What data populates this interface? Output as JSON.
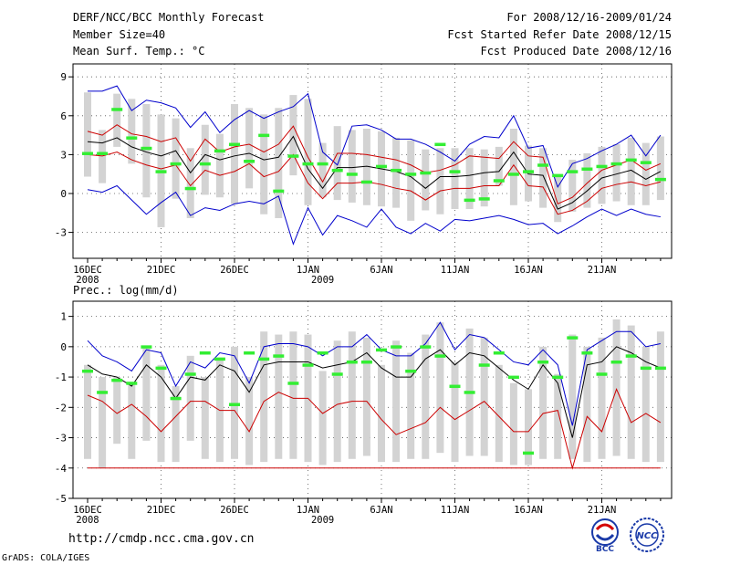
{
  "header": {
    "title": "DERF/NCC/BCC Monthly Forecast",
    "member_size": "Member Size=40",
    "variable_1": "Mean Surf. Temp.: °C",
    "period": "For 2008/12/16-2009/01/24",
    "started": "Fcst Started Refer Date 2008/12/15",
    "produced": "Fcst Produced Date 2008/12/16"
  },
  "footer": {
    "url": "http://cmdp.ncc.cma.gov.cn",
    "credit": "GrADS: COLA/IGES",
    "logo_bcc": "BCC",
    "logo_ncc": "NCC"
  },
  "colors": {
    "max_line": "#0000cc",
    "min_line": "#cc0000",
    "mean_line": "#000000",
    "box": "#d3d3d3",
    "median": "#33ee33"
  },
  "chart_data": [
    {
      "type": "box-spread",
      "title": "Mean Surf. Temp.: °C",
      "ylim": [
        -5,
        10
      ],
      "yticks": [
        9,
        6,
        3,
        0,
        -3
      ],
      "x_tick_labels": [
        "16DEC",
        "21DEC",
        "26DEC",
        "1JAN",
        "6JAN",
        "11JAN",
        "16JAN",
        "21JAN"
      ],
      "x_year_labels": [
        {
          "day": 0,
          "label": "2008"
        },
        {
          "day": 16,
          "label": "2009"
        }
      ],
      "days": 40,
      "series": [
        {
          "name": "max",
          "values": [
            7.9,
            7.9,
            8.3,
            6.4,
            7.2,
            7.0,
            6.6,
            5.1,
            6.3,
            4.7,
            5.7,
            6.4,
            5.8,
            6.3,
            6.7,
            7.7,
            3.2,
            2.2,
            5.2,
            5.3,
            4.9,
            4.2,
            4.2,
            3.8,
            3.2,
            2.5,
            3.8,
            4.4,
            4.3,
            6.0,
            3.5,
            3.7,
            0.5,
            2.3,
            2.7,
            3.3,
            3.8,
            4.5,
            2.9,
            4.5
          ]
        },
        {
          "name": "upper",
          "values": [
            4.8,
            4.5,
            5.3,
            4.6,
            4.4,
            4.0,
            4.3,
            2.5,
            4.2,
            3.2,
            3.6,
            3.8,
            3.2,
            3.8,
            5.2,
            2.8,
            0.9,
            3.1,
            3.1,
            3.0,
            2.8,
            2.6,
            2.2,
            1.6,
            1.8,
            2.2,
            2.9,
            2.8,
            2.7,
            4.0,
            2.9,
            2.8,
            -0.8,
            -0.3,
            0.8,
            1.8,
            2.2,
            2.6,
            1.8,
            2.3
          ]
        },
        {
          "name": "mean",
          "values": [
            4.0,
            3.9,
            4.3,
            3.6,
            3.2,
            2.9,
            3.3,
            1.6,
            3.0,
            2.6,
            2.9,
            3.1,
            2.6,
            2.8,
            4.4,
            1.9,
            0.4,
            2.0,
            2.0,
            2.1,
            1.9,
            1.7,
            1.3,
            0.4,
            1.3,
            1.3,
            1.4,
            1.6,
            1.7,
            3.2,
            1.5,
            1.4,
            -1.2,
            -0.7,
            0.2,
            1.2,
            1.5,
            1.8,
            1.1,
            1.7
          ]
        },
        {
          "name": "lower",
          "values": [
            3.0,
            2.9,
            3.2,
            2.6,
            2.2,
            1.9,
            2.2,
            0.6,
            1.8,
            1.4,
            1.7,
            2.3,
            1.3,
            1.7,
            3.0,
            0.8,
            -0.4,
            0.8,
            0.8,
            0.9,
            0.7,
            0.4,
            0.2,
            -0.5,
            0.2,
            0.4,
            0.4,
            0.6,
            0.6,
            2.2,
            0.6,
            0.5,
            -1.6,
            -1.3,
            -0.6,
            0.4,
            0.7,
            0.9,
            0.6,
            0.9
          ]
        },
        {
          "name": "min",
          "values": [
            0.3,
            0.1,
            0.6,
            -0.5,
            -1.6,
            -0.7,
            0.1,
            -1.7,
            -1.1,
            -1.3,
            -0.8,
            -0.6,
            -0.8,
            -0.2,
            -3.9,
            -1.1,
            -3.2,
            -1.7,
            -2.1,
            -2.6,
            -1.2,
            -2.6,
            -3.1,
            -2.3,
            -2.9,
            -2.0,
            -2.1,
            -1.9,
            -1.7,
            -2.0,
            -2.4,
            -2.3,
            -3.1,
            -2.5,
            -1.8,
            -1.2,
            -1.7,
            -1.2,
            -1.6,
            -1.8
          ]
        },
        {
          "name": "box_top",
          "values": [
            7.8,
            4.9,
            7.7,
            7.3,
            6.9,
            6.1,
            5.8,
            3.5,
            5.3,
            4.6,
            6.9,
            6.6,
            6.1,
            6.6,
            7.6,
            7.3,
            3.9,
            5.2,
            4.9,
            5.0,
            4.8,
            4.3,
            4.1,
            3.4,
            3.5,
            3.5,
            3.5,
            3.4,
            3.6,
            5.0,
            3.7,
            3.5,
            1.5,
            2.6,
            3.1,
            3.6,
            3.8,
            4.3,
            3.9,
            4.4
          ]
        },
        {
          "name": "box_bottom",
          "values": [
            1.3,
            0.8,
            3.6,
            2.3,
            -0.3,
            -2.6,
            -0.4,
            -1.9,
            -0.1,
            -0.3,
            -0.8,
            0.4,
            -1.6,
            -1.9,
            1.4,
            -0.9,
            -0.3,
            -0.5,
            -0.7,
            -0.9,
            -1.0,
            -1.1,
            -2.1,
            -1.3,
            -1.6,
            -1.2,
            -1.2,
            -1.0,
            0.6,
            -0.9,
            -0.6,
            -1.1,
            -2.2,
            -1.4,
            -1.1,
            -0.8,
            -0.6,
            -0.9,
            -0.9,
            -0.5
          ]
        },
        {
          "name": "median",
          "values": [
            3.1,
            3.1,
            6.5,
            4.3,
            3.5,
            1.7,
            2.3,
            0.4,
            2.3,
            3.3,
            3.8,
            2.5,
            4.5,
            0.2,
            2.9,
            2.3,
            2.3,
            1.8,
            1.5,
            0.9,
            2.1,
            1.8,
            1.5,
            1.6,
            3.8,
            1.7,
            -0.5,
            -0.4,
            1.0,
            1.5,
            1.7,
            2.2,
            1.4,
            1.7,
            1.9,
            2.1,
            2.3,
            2.6,
            2.4,
            1.1
          ]
        }
      ]
    },
    {
      "type": "box-spread",
      "title": "Prec.: log(mm/d)",
      "ylim": [
        -5,
        1.5
      ],
      "yticks": [
        1,
        0,
        -1,
        -2,
        -3,
        -4,
        -5
      ],
      "x_tick_labels": [
        "16DEC",
        "21DEC",
        "26DEC",
        "1JAN",
        "6JAN",
        "11JAN",
        "16JAN",
        "21JAN"
      ],
      "x_year_labels": [
        {
          "day": 0,
          "label": "2008"
        },
        {
          "day": 16,
          "label": "2009"
        }
      ],
      "days": 40,
      "series": [
        {
          "name": "max",
          "values": [
            0.2,
            -0.3,
            -0.5,
            -0.8,
            -0.1,
            -0.2,
            -1.3,
            -0.5,
            -0.7,
            -0.2,
            -0.3,
            -1.2,
            0.0,
            0.1,
            0.1,
            0.0,
            -0.3,
            0.0,
            0.0,
            0.4,
            -0.1,
            -0.3,
            -0.3,
            0.1,
            0.8,
            -0.1,
            0.4,
            0.3,
            -0.1,
            -0.5,
            -0.6,
            -0.1,
            -0.6,
            -2.6,
            -0.1,
            0.2,
            0.5,
            0.5,
            0.0,
            0.1
          ]
        },
        {
          "name": "mean",
          "values": [
            -0.6,
            -0.9,
            -1.0,
            -1.3,
            -0.6,
            -1.0,
            -1.7,
            -1.0,
            -1.1,
            -0.6,
            -0.8,
            -1.5,
            -0.6,
            -0.5,
            -0.5,
            -0.5,
            -0.7,
            -0.6,
            -0.5,
            -0.2,
            -0.7,
            -1.0,
            -1.0,
            -0.4,
            -0.1,
            -0.6,
            -0.2,
            -0.3,
            -0.7,
            -1.1,
            -1.4,
            -0.6,
            -1.2,
            -3.0,
            -0.6,
            -0.5,
            0.0,
            -0.2,
            -0.5,
            -0.7
          ]
        },
        {
          "name": "min",
          "values": [
            -1.6,
            -1.8,
            -2.2,
            -1.9,
            -2.3,
            -2.8,
            -2.3,
            -1.8,
            -1.8,
            -2.1,
            -2.1,
            -2.8,
            -1.8,
            -1.5,
            -1.7,
            -1.7,
            -2.2,
            -1.9,
            -1.8,
            -1.8,
            -2.4,
            -2.9,
            -2.7,
            -2.5,
            -2.0,
            -2.4,
            -2.1,
            -1.8,
            -2.3,
            -2.8,
            -2.8,
            -2.2,
            -2.1,
            -4.0,
            -2.3,
            -2.8,
            -1.4,
            -2.5,
            -2.2,
            -2.5
          ]
        },
        {
          "name": "floor",
          "values": [
            -4.0,
            -4.0,
            -4.0,
            -4.0,
            -4.0,
            -4.0,
            -4.0,
            -4.0,
            -4.0,
            -4.0,
            -4.0,
            -4.0,
            -4.0,
            -4.0,
            -4.0,
            -4.0,
            -4.0,
            -4.0,
            -4.0,
            -4.0,
            -4.0,
            -4.0,
            -4.0,
            -4.0,
            -4.0,
            -4.0,
            -4.0,
            -4.0,
            -4.0,
            -4.0,
            -4.0,
            -4.0,
            -4.0,
            -4.0,
            -4.0,
            -4.0,
            -4.0,
            -4.0,
            -4.0,
            -4.0
          ]
        },
        {
          "name": "box_top",
          "values": [
            -0.6,
            -1.0,
            -1.0,
            -1.2,
            0.0,
            -0.6,
            -1.3,
            -0.3,
            -1.0,
            -0.4,
            0.0,
            -1.0,
            0.5,
            0.4,
            0.5,
            0.4,
            -0.8,
            0.2,
            0.5,
            0.3,
            -0.6,
            0.2,
            -0.2,
            0.4,
            0.8,
            -0.5,
            0.6,
            0.3,
            -0.6,
            -1.2,
            -1.4,
            0.0,
            -0.9,
            0.4,
            0.0,
            0.3,
            0.9,
            0.7,
            0.0,
            0.5
          ]
        },
        {
          "name": "box_bottom",
          "values": [
            -3.7,
            -4.0,
            -3.2,
            -3.7,
            -3.1,
            -3.8,
            -3.8,
            -3.1,
            -3.7,
            -3.8,
            -3.7,
            -3.9,
            -3.8,
            -3.7,
            -3.7,
            -3.8,
            -3.9,
            -3.8,
            -3.7,
            -3.6,
            -3.8,
            -3.8,
            -3.7,
            -3.7,
            -3.5,
            -3.8,
            -3.6,
            -3.6,
            -3.8,
            -3.9,
            -3.9,
            -3.7,
            -3.7,
            -3.7,
            -3.8,
            -3.7,
            -3.6,
            -3.7,
            -3.8,
            -3.8
          ]
        },
        {
          "name": "median",
          "values": [
            -0.8,
            -1.5,
            -1.1,
            -1.2,
            0.0,
            -0.7,
            -1.7,
            -0.9,
            -0.2,
            -0.4,
            -1.9,
            -0.2,
            -0.4,
            -0.3,
            -1.2,
            -0.6,
            -0.2,
            -0.9,
            -0.5,
            -0.5,
            -0.1,
            0.0,
            -0.8,
            0.0,
            -0.3,
            -1.3,
            -1.5,
            -0.6,
            -0.2,
            -1.0,
            -3.5,
            -0.5,
            -1.0,
            0.3,
            -0.2,
            -0.9,
            -0.5,
            -0.3,
            -0.7,
            -0.7
          ]
        }
      ]
    }
  ]
}
